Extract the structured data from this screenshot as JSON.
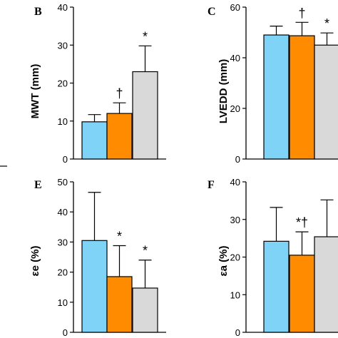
{
  "colors": {
    "blue": "#7ed3f7",
    "orange": "#ff8c00",
    "gray": "#d9d9d9",
    "axis": "#000000"
  },
  "chart_data": [
    {
      "panel": "B",
      "type": "bar",
      "ylabel": "MWT (mm)",
      "ylim": [
        0,
        40
      ],
      "yticks": [
        0,
        10,
        20,
        30,
        40
      ],
      "values": [
        9.8,
        12.0,
        23.0
      ],
      "errors": [
        1.9,
        2.8,
        6.8
      ],
      "colors": [
        "blue",
        "orange",
        "gray"
      ],
      "annotations": [
        "",
        "†",
        "*"
      ]
    },
    {
      "panel": "C",
      "type": "bar",
      "ylabel": "LVEDD (mm)",
      "ylim": [
        0,
        60
      ],
      "yticks": [
        0,
        20,
        40,
        60
      ],
      "values": [
        49.0,
        48.7,
        45.0
      ],
      "errors": [
        3.5,
        5.3,
        4.8
      ],
      "colors": [
        "blue",
        "orange",
        "gray"
      ],
      "annotations": [
        "",
        "†",
        "*"
      ]
    },
    {
      "panel": "E",
      "type": "bar",
      "ylabel": "εe (%)",
      "ylim": [
        0,
        50
      ],
      "yticks": [
        0,
        10,
        20,
        30,
        40,
        50
      ],
      "values": [
        30.5,
        18.5,
        14.7
      ],
      "errors": [
        16.0,
        10.3,
        9.3
      ],
      "colors": [
        "blue",
        "orange",
        "gray"
      ],
      "annotations": [
        "",
        "*",
        "*"
      ]
    },
    {
      "panel": "F",
      "type": "bar",
      "ylabel": "εa (%)",
      "ylim": [
        0,
        40
      ],
      "yticks": [
        0,
        10,
        20,
        30,
        40
      ],
      "values": [
        24.2,
        20.5,
        25.4
      ],
      "errors": [
        9.0,
        6.2,
        9.8
      ],
      "colors": [
        "blue",
        "orange",
        "gray"
      ],
      "annotations": [
        "",
        "*†",
        ""
      ]
    }
  ]
}
